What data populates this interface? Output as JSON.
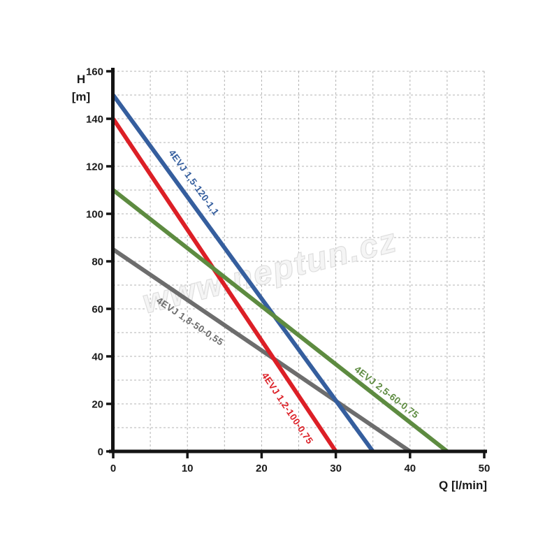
{
  "watermark": {
    "text": "www.neptun.cz"
  },
  "chart_data": {
    "type": "line",
    "title": "",
    "xlabel": "Q [l/min]",
    "ylabel": "H [m]",
    "ylabel_lines": [
      "H",
      "[m]"
    ],
    "xlim": [
      0,
      50
    ],
    "ylim": [
      0,
      160
    ],
    "x_major_ticks": [
      0,
      10,
      20,
      30,
      40,
      50
    ],
    "x_minor_step": 5,
    "y_major_ticks": [
      0,
      20,
      40,
      60,
      80,
      100,
      120,
      140,
      160
    ],
    "y_minor_step": 10,
    "grid": "dashed",
    "legend_position": "labels-on-lines",
    "colors": {
      "axis": "#141414",
      "grid": "#b3b3b3",
      "tick_text": "#1a1a1a",
      "background": "#ffffff"
    },
    "series": [
      {
        "name": "4EVJ 1,8-50-0,55",
        "color": "#6d6d6d",
        "points": [
          [
            0,
            85
          ],
          [
            40,
            0
          ]
        ],
        "label_anchor": {
          "x": 10.3,
          "y": 54.5
        },
        "label_rotation_deg": 34,
        "label_side": "below-line"
      },
      {
        "name": "4EVJ 1,2-100-0,75",
        "color": "#dc1f26",
        "points": [
          [
            0,
            140
          ],
          [
            30,
            0
          ]
        ],
        "label_anchor": {
          "x": 23.4,
          "y": 18
        },
        "label_rotation_deg": 56,
        "label_side": "left-of-line"
      },
      {
        "name": "4EVJ 1,5-120-1,1",
        "color": "#355e9e",
        "points": [
          [
            0,
            150
          ],
          [
            35,
            0
          ]
        ],
        "label_anchor": {
          "x": 10.8,
          "y": 113
        },
        "label_rotation_deg": 54,
        "label_side": "above-line"
      },
      {
        "name": "4EVJ 2,5-60-0,75",
        "color": "#5d8b40",
        "points": [
          [
            0,
            110
          ],
          [
            45,
            0
          ]
        ],
        "label_anchor": {
          "x": 36.8,
          "y": 24.7
        },
        "label_rotation_deg": 38,
        "label_side": "above-line"
      }
    ]
  }
}
